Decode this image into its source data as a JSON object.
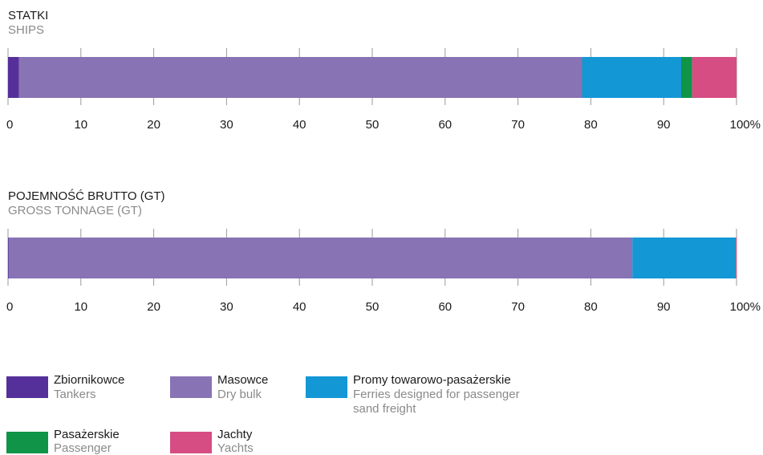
{
  "chart_data": [
    {
      "type": "bar",
      "orientation": "horizontal-stacked-100",
      "title": "STATKI",
      "subtitle": "SHIPS",
      "xlim": [
        0,
        100
      ],
      "ticks": [
        "0",
        "10",
        "20",
        "30",
        "40",
        "50",
        "60",
        "70",
        "80",
        "90",
        "100%"
      ],
      "series": [
        {
          "name": "Zbiornikowce",
          "value": 1.5
        },
        {
          "name": "Masowce",
          "value": 77.3
        },
        {
          "name": "Promy towarowo-pasażerskie",
          "value": 13.6
        },
        {
          "name": "Pasażerskie",
          "value": 1.5
        },
        {
          "name": "Jachty",
          "value": 6.1
        }
      ]
    },
    {
      "type": "bar",
      "orientation": "horizontal-stacked-100",
      "title": "POJEMNOŚĆ BRUTTO (GT)",
      "subtitle": "GROSS TONNAGE (GT)",
      "xlim": [
        0,
        100
      ],
      "ticks": [
        "0",
        "10",
        "20",
        "30",
        "40",
        "50",
        "60",
        "70",
        "80",
        "90",
        "100%"
      ],
      "series": [
        {
          "name": "Zbiornikowce",
          "value": 0.1
        },
        {
          "name": "Masowce",
          "value": 85.6
        },
        {
          "name": "Promy towarowo-pasażerskie",
          "value": 14.1
        },
        {
          "name": "Pasażerskie",
          "value": 0.1
        },
        {
          "name": "Jachty",
          "value": 0.1
        }
      ]
    }
  ],
  "legend": [
    {
      "pl": "Zbiornikowce",
      "en": "Tankers",
      "color": "#55309a"
    },
    {
      "pl": "Masowce",
      "en": "Dry bulk",
      "color": "#8873b4"
    },
    {
      "pl": "Promy towarowo-pasażerskie",
      "en": "Ferries designed for passenger",
      "en2": "sand freight",
      "color": "#1397d5"
    },
    {
      "pl": "Pasażerskie",
      "en": "Passenger",
      "color": "#0f9448"
    },
    {
      "pl": "Jachty",
      "en": "Yachts",
      "color": "#d64d83"
    }
  ]
}
